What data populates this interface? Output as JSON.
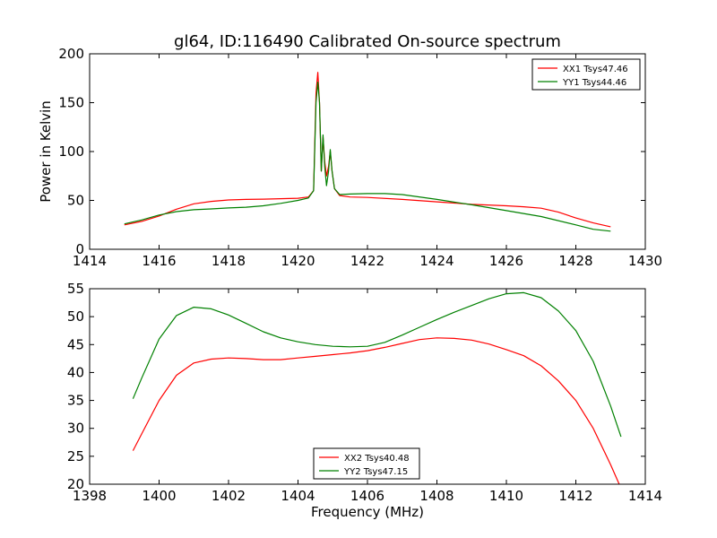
{
  "chart_data": [
    {
      "type": "line",
      "title": "gl64, ID:116490 Calibrated On-source spectrum",
      "xlabel": "",
      "ylabel": "Power in Kelvin",
      "xlim": [
        1414,
        1430
      ],
      "ylim": [
        0,
        200
      ],
      "xticks": [
        "1414",
        "1416",
        "1418",
        "1420",
        "1422",
        "1424",
        "1426",
        "1428",
        "1430"
      ],
      "yticks": [
        "0",
        "50",
        "100",
        "150",
        "200"
      ],
      "grid": false,
      "legend_position": "top-right",
      "series": [
        {
          "name": "XX1 Tsys47.46",
          "color": "#ff0000",
          "points": [
            [
              1415.0,
              25
            ],
            [
              1415.5,
              28.5
            ],
            [
              1416.0,
              34
            ],
            [
              1416.5,
              41
            ],
            [
              1417.0,
              46.5
            ],
            [
              1417.5,
              49
            ],
            [
              1418.0,
              50.5
            ],
            [
              1418.5,
              51
            ],
            [
              1419.0,
              51.3
            ],
            [
              1419.5,
              51.7
            ],
            [
              1420.0,
              52.2
            ],
            [
              1420.3,
              53.5
            ],
            [
              1420.45,
              60
            ],
            [
              1420.52,
              160
            ],
            [
              1420.57,
              181
            ],
            [
              1420.62,
              150
            ],
            [
              1420.67,
              80
            ],
            [
              1420.72,
              115
            ],
            [
              1420.77,
              90
            ],
            [
              1420.82,
              75
            ],
            [
              1420.88,
              85
            ],
            [
              1420.93,
              100
            ],
            [
              1420.98,
              80
            ],
            [
              1421.05,
              62
            ],
            [
              1421.2,
              55
            ],
            [
              1421.5,
              53.5
            ],
            [
              1422.0,
              53
            ],
            [
              1423.0,
              51
            ],
            [
              1424.0,
              48.5
            ],
            [
              1425.0,
              46
            ],
            [
              1426.0,
              44.5
            ],
            [
              1426.5,
              43.5
            ],
            [
              1427.0,
              42
            ],
            [
              1427.5,
              38
            ],
            [
              1428.0,
              32
            ],
            [
              1428.5,
              27
            ],
            [
              1429.0,
              23
            ]
          ]
        },
        {
          "name": "YY1 Tsys44.46",
          "color": "#008000",
          "points": [
            [
              1415.0,
              26
            ],
            [
              1415.5,
              30
            ],
            [
              1416.0,
              35
            ],
            [
              1416.5,
              38.5
            ],
            [
              1417.0,
              40.5
            ],
            [
              1417.5,
              41.3
            ],
            [
              1418.0,
              42.3
            ],
            [
              1418.5,
              43
            ],
            [
              1419.0,
              44.5
            ],
            [
              1419.5,
              47
            ],
            [
              1420.0,
              50
            ],
            [
              1420.3,
              52.5
            ],
            [
              1420.45,
              60
            ],
            [
              1420.52,
              150
            ],
            [
              1420.57,
              171
            ],
            [
              1420.62,
              150
            ],
            [
              1420.67,
              80
            ],
            [
              1420.72,
              117
            ],
            [
              1420.77,
              85
            ],
            [
              1420.82,
              65
            ],
            [
              1420.88,
              80
            ],
            [
              1420.93,
              102
            ],
            [
              1420.98,
              80
            ],
            [
              1421.05,
              62
            ],
            [
              1421.2,
              56
            ],
            [
              1421.5,
              56.5
            ],
            [
              1422.0,
              57
            ],
            [
              1422.5,
              57
            ],
            [
              1423.0,
              56
            ],
            [
              1424.0,
              51
            ],
            [
              1425.0,
              45.5
            ],
            [
              1426.0,
              39.5
            ],
            [
              1427.0,
              33.5
            ],
            [
              1428.0,
              25
            ],
            [
              1428.5,
              20.5
            ],
            [
              1429.0,
              18.5
            ]
          ]
        }
      ]
    },
    {
      "type": "line",
      "title": "",
      "xlabel": "Frequency (MHz)",
      "ylabel": "",
      "xlim": [
        1398,
        1414
      ],
      "ylim": [
        20,
        55
      ],
      "xticks": [
        "1398",
        "1400",
        "1402",
        "1404",
        "1406",
        "1408",
        "1410",
        "1412",
        "1414"
      ],
      "yticks": [
        "20",
        "25",
        "30",
        "35",
        "40",
        "45",
        "50",
        "55"
      ],
      "grid": false,
      "legend_position": "bottom-center",
      "series": [
        {
          "name": "XX2 Tsys40.48",
          "color": "#ff0000",
          "points": [
            [
              1399.25,
              26
            ],
            [
              1399.5,
              29
            ],
            [
              1400.0,
              35
            ],
            [
              1400.5,
              39.5
            ],
            [
              1401.0,
              41.7
            ],
            [
              1401.5,
              42.4
            ],
            [
              1402.0,
              42.6
            ],
            [
              1402.5,
              42.5
            ],
            [
              1403.0,
              42.3
            ],
            [
              1403.5,
              42.3
            ],
            [
              1404.0,
              42.6
            ],
            [
              1404.5,
              42.9
            ],
            [
              1405.0,
              43.2
            ],
            [
              1405.5,
              43.5
            ],
            [
              1406.0,
              43.9
            ],
            [
              1406.5,
              44.5
            ],
            [
              1407.0,
              45.2
            ],
            [
              1407.5,
              45.9
            ],
            [
              1408.0,
              46.2
            ],
            [
              1408.5,
              46.1
            ],
            [
              1409.0,
              45.8
            ],
            [
              1409.5,
              45.1
            ],
            [
              1410.0,
              44.1
            ],
            [
              1410.5,
              43
            ],
            [
              1411.0,
              41.2
            ],
            [
              1411.5,
              38.5
            ],
            [
              1412.0,
              35
            ],
            [
              1412.5,
              30
            ],
            [
              1413.0,
              23.5
            ],
            [
              1413.25,
              20
            ]
          ]
        },
        {
          "name": "YY2 Tsys47.15",
          "color": "#008000",
          "points": [
            [
              1399.25,
              35.3
            ],
            [
              1399.5,
              39
            ],
            [
              1400.0,
              46
            ],
            [
              1400.5,
              50.2
            ],
            [
              1401.0,
              51.7
            ],
            [
              1401.5,
              51.4
            ],
            [
              1402.0,
              50.3
            ],
            [
              1402.5,
              48.8
            ],
            [
              1403.0,
              47.3
            ],
            [
              1403.5,
              46.2
            ],
            [
              1404.0,
              45.5
            ],
            [
              1404.5,
              45
            ],
            [
              1405.0,
              44.7
            ],
            [
              1405.5,
              44.6
            ],
            [
              1406.0,
              44.7
            ],
            [
              1406.5,
              45.4
            ],
            [
              1407.0,
              46.7
            ],
            [
              1407.5,
              48.1
            ],
            [
              1408.0,
              49.5
            ],
            [
              1408.5,
              50.8
            ],
            [
              1409.0,
              52
            ],
            [
              1409.5,
              53.2
            ],
            [
              1410.0,
              54.1
            ],
            [
              1410.5,
              54.3
            ],
            [
              1411.0,
              53.4
            ],
            [
              1411.5,
              51
            ],
            [
              1412.0,
              47.5
            ],
            [
              1412.5,
              42
            ],
            [
              1413.0,
              34
            ],
            [
              1413.3,
              28.5
            ]
          ]
        }
      ]
    }
  ]
}
